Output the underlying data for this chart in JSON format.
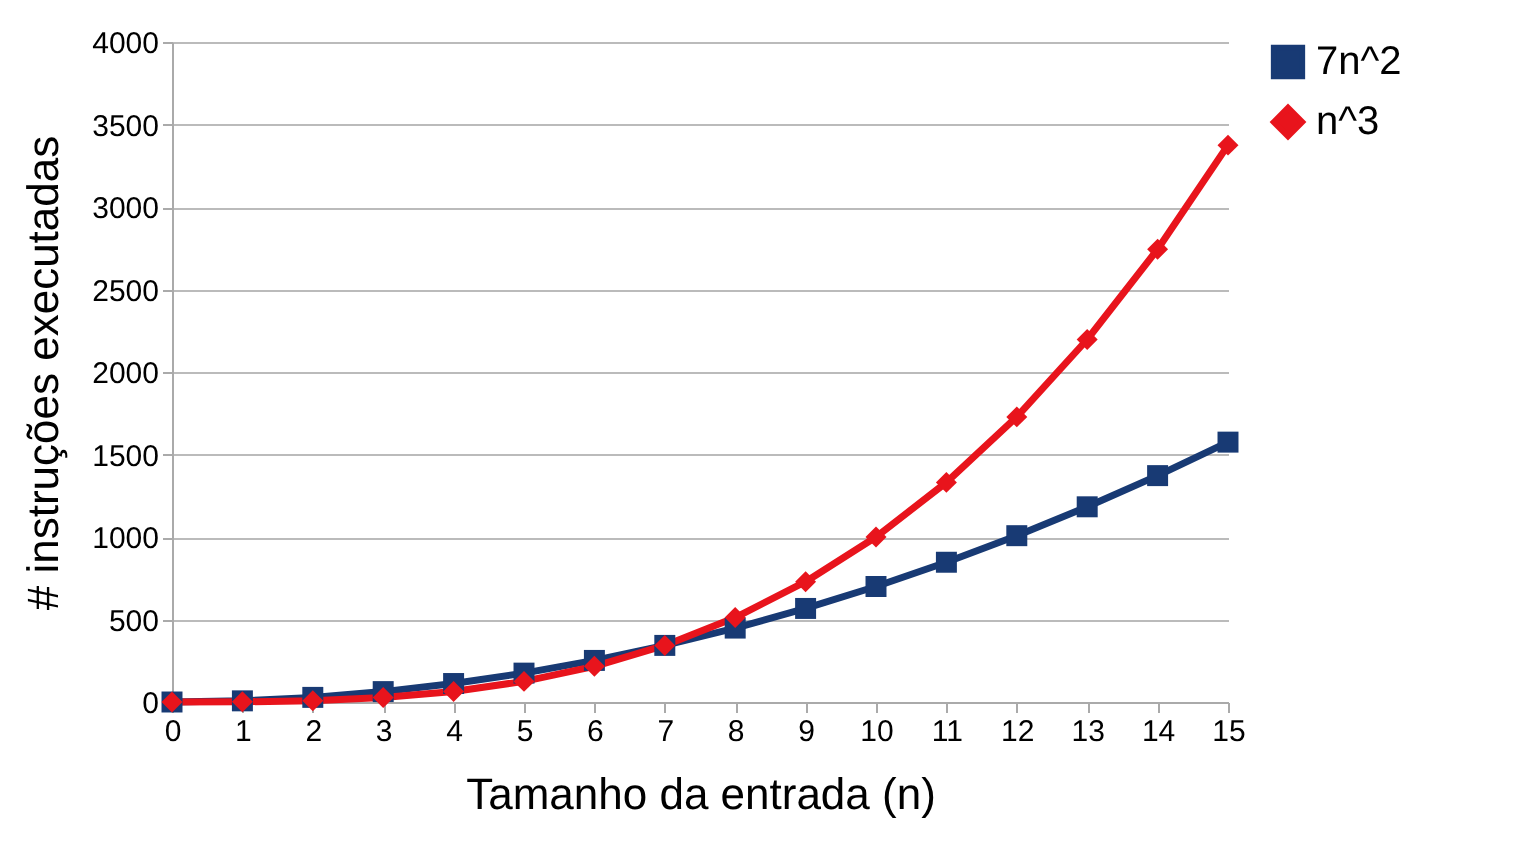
{
  "chart_data": {
    "type": "line",
    "xlabel": "Tamanho da entrada (n)",
    "ylabel": "# instruções executadas",
    "x": [
      0,
      1,
      2,
      3,
      4,
      5,
      6,
      7,
      8,
      9,
      10,
      11,
      12,
      13,
      14,
      15
    ],
    "xlim": [
      0,
      15
    ],
    "xticks": [
      0,
      1,
      2,
      3,
      4,
      5,
      6,
      7,
      8,
      9,
      10,
      11,
      12,
      13,
      14,
      15
    ],
    "ylim": [
      0,
      4000
    ],
    "yticks": [
      0,
      500,
      1000,
      1500,
      2000,
      2500,
      3000,
      3500,
      4000
    ],
    "grid": "y",
    "legend": "right",
    "series": [
      {
        "name": "7n^2",
        "color": "#183a74",
        "marker": "square",
        "values": [
          0,
          7,
          28,
          63,
          112,
          175,
          252,
          343,
          448,
          567,
          700,
          847,
          1008,
          1183,
          1372,
          1575
        ]
      },
      {
        "name": "n^3",
        "color": "#e8141c",
        "marker": "diamond",
        "values": [
          0,
          1,
          8,
          27,
          64,
          125,
          216,
          343,
          512,
          729,
          1000,
          1331,
          1728,
          2197,
          2744,
          3375
        ]
      }
    ]
  }
}
